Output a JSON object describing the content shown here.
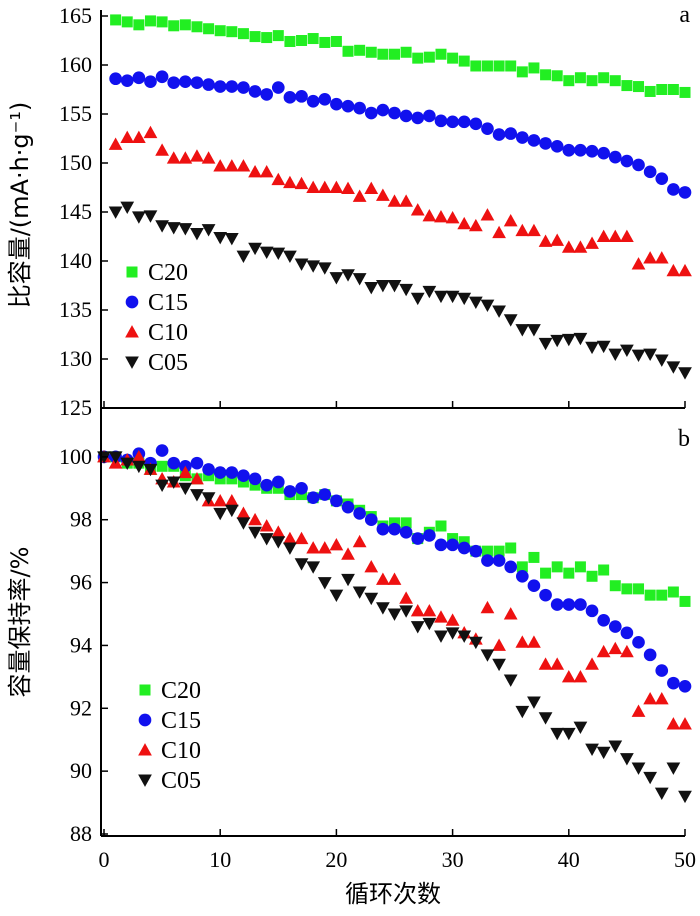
{
  "chart_data": [
    {
      "panel_label": "a",
      "type": "scatter",
      "xlabel": "",
      "ylabel": "比容量/(mA·h·g⁻¹)",
      "xlim": [
        0,
        50
      ],
      "ylim": [
        125,
        165
      ],
      "x_ticks": [
        0,
        10,
        20,
        30,
        40,
        50
      ],
      "y_ticks": [
        125,
        130,
        135,
        140,
        145,
        150,
        155,
        160,
        165
      ],
      "grid": false,
      "legend_position": "bottom-left",
      "series": [
        {
          "name": "C20",
          "color": "#22ee22",
          "marker": "square",
          "x": [
            1,
            2,
            3,
            4,
            5,
            6,
            7,
            8,
            9,
            10,
            11,
            12,
            13,
            14,
            15,
            16,
            17,
            18,
            19,
            20,
            21,
            22,
            23,
            24,
            25,
            26,
            27,
            28,
            29,
            30,
            31,
            32,
            33,
            34,
            35,
            36,
            37,
            38,
            39,
            40,
            41,
            42,
            43,
            44,
            45,
            46,
            47,
            48,
            49,
            50
          ],
          "y": [
            164.6,
            164.4,
            164.1,
            164.5,
            164.4,
            164.0,
            164.1,
            163.9,
            163.7,
            163.5,
            163.4,
            163.2,
            162.9,
            162.8,
            163.0,
            162.4,
            162.5,
            162.7,
            162.3,
            162.4,
            161.4,
            161.5,
            161.3,
            161.1,
            161.1,
            161.3,
            160.7,
            160.8,
            161.1,
            160.7,
            160.4,
            159.9,
            159.9,
            159.9,
            159.9,
            159.3,
            159.7,
            159.0,
            158.9,
            158.4,
            158.7,
            158.4,
            158.7,
            158.4,
            157.9,
            157.8,
            157.3,
            157.5,
            157.5,
            157.2
          ]
        },
        {
          "name": "C15",
          "color": "#1111ee",
          "marker": "circle",
          "x": [
            1,
            2,
            3,
            4,
            5,
            6,
            7,
            8,
            9,
            10,
            11,
            12,
            13,
            14,
            15,
            16,
            17,
            18,
            19,
            20,
            21,
            22,
            23,
            24,
            25,
            26,
            27,
            28,
            29,
            30,
            31,
            32,
            33,
            34,
            35,
            36,
            37,
            38,
            39,
            40,
            41,
            42,
            43,
            44,
            45,
            46,
            47,
            48,
            49,
            50
          ],
          "y": [
            158.6,
            158.4,
            158.7,
            158.3,
            158.8,
            158.2,
            158.3,
            158.2,
            158.0,
            157.8,
            157.8,
            157.7,
            157.3,
            157.0,
            157.7,
            156.7,
            156.8,
            156.3,
            156.5,
            156.0,
            155.8,
            155.6,
            155.1,
            155.4,
            155.1,
            154.8,
            154.6,
            154.8,
            154.3,
            154.2,
            154.2,
            154.0,
            153.5,
            152.9,
            153.0,
            152.6,
            152.3,
            152.0,
            151.7,
            151.3,
            151.3,
            151.2,
            151.0,
            150.6,
            150.2,
            149.8,
            149.1,
            148.4,
            147.3,
            147.0
          ]
        },
        {
          "name": "C10",
          "color": "#ee1111",
          "marker": "triangle-up",
          "x": [
            1,
            2,
            3,
            4,
            5,
            6,
            7,
            8,
            9,
            10,
            11,
            12,
            13,
            14,
            15,
            16,
            17,
            18,
            19,
            20,
            21,
            22,
            23,
            24,
            25,
            26,
            27,
            28,
            29,
            30,
            31,
            32,
            33,
            34,
            35,
            36,
            37,
            38,
            39,
            40,
            41,
            42,
            43,
            44,
            45,
            46,
            47,
            48,
            49,
            50
          ],
          "y": [
            151.9,
            152.6,
            152.6,
            153.1,
            151.3,
            150.5,
            150.5,
            150.7,
            150.5,
            149.7,
            149.7,
            149.7,
            149.1,
            149.1,
            148.3,
            148.0,
            147.9,
            147.5,
            147.5,
            147.5,
            147.4,
            146.6,
            147.4,
            146.7,
            146.1,
            146.1,
            145.2,
            144.6,
            144.5,
            144.4,
            143.8,
            143.6,
            144.7,
            142.9,
            144.1,
            143.1,
            143.1,
            142.0,
            142.1,
            141.4,
            141.4,
            141.8,
            142.5,
            142.5,
            142.5,
            139.7,
            140.3,
            140.3,
            139.0,
            139.0
          ]
        },
        {
          "name": "C05",
          "color": "#111111",
          "marker": "triangle-down",
          "x": [
            1,
            2,
            3,
            4,
            5,
            6,
            7,
            8,
            9,
            10,
            11,
            12,
            13,
            14,
            15,
            16,
            17,
            18,
            19,
            20,
            21,
            22,
            23,
            24,
            25,
            26,
            27,
            28,
            29,
            30,
            31,
            32,
            33,
            34,
            35,
            36,
            37,
            38,
            39,
            40,
            41,
            42,
            43,
            44,
            45,
            46,
            47,
            48,
            49,
            50
          ],
          "y": [
            145.0,
            145.5,
            144.5,
            144.6,
            143.6,
            143.4,
            143.3,
            142.8,
            143.2,
            142.4,
            142.3,
            140.5,
            141.3,
            140.9,
            140.8,
            140.5,
            139.7,
            139.5,
            139.3,
            138.3,
            138.6,
            138.2,
            137.3,
            137.5,
            137.5,
            137.1,
            136.2,
            136.9,
            136.4,
            136.4,
            136.2,
            135.8,
            135.5,
            134.9,
            134.0,
            133.0,
            133.0,
            131.6,
            131.9,
            132.0,
            132.1,
            131.2,
            131.3,
            130.5,
            130.9,
            130.4,
            130.5,
            129.9,
            129.2,
            128.6
          ]
        }
      ],
      "legend": [
        "C20",
        "C15",
        "C10",
        "C05"
      ]
    },
    {
      "panel_label": "b",
      "type": "scatter",
      "xlabel": "循环次数",
      "ylabel": "容量保持率/%",
      "xlim": [
        0,
        50
      ],
      "ylim": [
        88,
        100.6
      ],
      "x_ticks": [
        0,
        10,
        20,
        30,
        40,
        50
      ],
      "y_ticks": [
        88,
        90,
        92,
        94,
        96,
        98,
        100
      ],
      "grid": false,
      "legend_position": "bottom-left",
      "series": [
        {
          "name": "C20",
          "color": "#22ee22",
          "marker": "square",
          "x": [
            0,
            1,
            2,
            3,
            4,
            5,
            6,
            7,
            8,
            9,
            10,
            11,
            12,
            13,
            14,
            15,
            16,
            17,
            18,
            19,
            20,
            21,
            22,
            23,
            24,
            25,
            26,
            27,
            28,
            29,
            30,
            31,
            32,
            33,
            34,
            35,
            36,
            37,
            38,
            39,
            40,
            41,
            42,
            43,
            44,
            45,
            46,
            47,
            48,
            49,
            50
          ],
          "y": [
            100.0,
            100.0,
            99.8,
            99.8,
            99.6,
            99.7,
            99.7,
            99.4,
            99.3,
            99.4,
            99.3,
            99.3,
            99.2,
            99.1,
            99.0,
            99.0,
            98.8,
            98.8,
            98.7,
            98.8,
            98.6,
            98.5,
            98.3,
            98.1,
            97.8,
            97.9,
            97.9,
            97.4,
            97.6,
            97.8,
            97.4,
            97.3,
            97.0,
            97.0,
            97.0,
            97.1,
            96.5,
            96.8,
            96.3,
            96.5,
            96.3,
            96.5,
            96.2,
            96.4,
            95.9,
            95.8,
            95.8,
            95.6,
            95.6,
            95.7,
            95.4
          ]
        },
        {
          "name": "C15",
          "color": "#1111ee",
          "marker": "circle",
          "x": [
            0,
            1,
            2,
            3,
            4,
            5,
            6,
            7,
            8,
            9,
            10,
            11,
            12,
            13,
            14,
            15,
            16,
            17,
            18,
            19,
            20,
            21,
            22,
            23,
            24,
            25,
            26,
            27,
            28,
            29,
            30,
            31,
            32,
            33,
            34,
            35,
            36,
            37,
            38,
            39,
            40,
            41,
            42,
            43,
            44,
            45,
            46,
            47,
            48,
            49,
            50
          ],
          "y": [
            100.0,
            100.0,
            99.9,
            100.1,
            99.8,
            100.2,
            99.8,
            99.7,
            99.8,
            99.6,
            99.5,
            99.5,
            99.4,
            99.3,
            99.1,
            99.2,
            98.9,
            99.0,
            98.7,
            98.8,
            98.6,
            98.4,
            98.2,
            98.0,
            97.7,
            97.7,
            97.6,
            97.4,
            97.5,
            97.2,
            97.2,
            97.1,
            97.0,
            96.7,
            96.7,
            96.5,
            96.2,
            95.9,
            95.6,
            95.3,
            95.3,
            95.3,
            95.1,
            94.8,
            94.6,
            94.4,
            94.1,
            93.7,
            93.2,
            92.8,
            92.7
          ]
        },
        {
          "name": "C10",
          "color": "#ee1111",
          "marker": "triangle-up",
          "x": [
            0,
            1,
            2,
            3,
            4,
            5,
            6,
            7,
            8,
            9,
            10,
            11,
            12,
            13,
            14,
            15,
            16,
            17,
            18,
            19,
            20,
            21,
            22,
            23,
            24,
            25,
            26,
            27,
            28,
            29,
            30,
            31,
            32,
            33,
            34,
            35,
            36,
            37,
            38,
            39,
            40,
            41,
            42,
            43,
            44,
            45,
            46,
            47,
            48,
            49,
            50
          ],
          "y": [
            100.0,
            99.8,
            99.9,
            100.0,
            99.6,
            99.3,
            99.2,
            99.5,
            99.3,
            98.6,
            98.6,
            98.6,
            98.2,
            98.0,
            97.8,
            97.6,
            97.4,
            97.4,
            97.1,
            97.1,
            97.2,
            96.9,
            97.3,
            96.5,
            96.1,
            96.1,
            95.5,
            95.1,
            95.1,
            94.9,
            94.8,
            94.4,
            94.2,
            95.2,
            94.0,
            95.0,
            94.1,
            94.1,
            93.4,
            93.4,
            93.0,
            93.0,
            93.4,
            93.8,
            93.9,
            93.8,
            91.9,
            92.3,
            92.3,
            91.5,
            91.5
          ]
        },
        {
          "name": "C05",
          "color": "#111111",
          "marker": "triangle-down",
          "x": [
            0,
            1,
            2,
            3,
            4,
            5,
            6,
            7,
            8,
            9,
            10,
            11,
            12,
            13,
            14,
            15,
            16,
            17,
            18,
            19,
            20,
            21,
            22,
            23,
            24,
            25,
            26,
            27,
            28,
            29,
            30,
            31,
            32,
            33,
            34,
            35,
            36,
            37,
            38,
            39,
            40,
            41,
            42,
            43,
            44,
            45,
            46,
            47,
            48,
            49,
            50
          ],
          "y": [
            100.0,
            100.0,
            99.8,
            99.7,
            99.6,
            99.1,
            99.2,
            99.0,
            98.8,
            98.7,
            98.2,
            98.3,
            97.9,
            97.6,
            97.4,
            97.3,
            97.1,
            96.6,
            96.5,
            96.0,
            95.6,
            96.1,
            95.7,
            95.5,
            95.2,
            95.0,
            95.1,
            94.6,
            94.7,
            94.3,
            94.4,
            94.3,
            94.1,
            93.7,
            93.4,
            92.9,
            91.9,
            92.2,
            91.7,
            91.2,
            91.2,
            91.4,
            90.7,
            90.6,
            90.8,
            90.4,
            90.1,
            89.8,
            89.3,
            90.1,
            89.2
          ]
        }
      ],
      "legend": [
        "C20",
        "C15",
        "C10",
        "C05"
      ]
    }
  ]
}
